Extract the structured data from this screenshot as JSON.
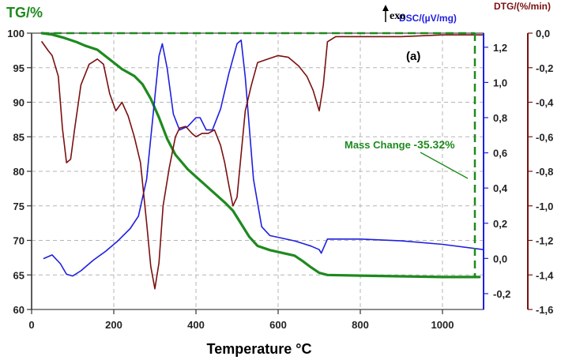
{
  "chart_data": {
    "type": "line",
    "title": "",
    "panel_label": "(a)",
    "exo_label": "exo",
    "xlabel": "Temperature °C",
    "xlim": [
      0,
      1100
    ],
    "xticks": [
      "0",
      "200",
      "400",
      "600",
      "800",
      "1000"
    ],
    "grid": true,
    "axes": {
      "tg": {
        "label": "TG/%",
        "ylim": [
          60,
          100
        ],
        "ticks": [
          "60",
          "65",
          "70",
          "75",
          "80",
          "85",
          "90",
          "95",
          "100"
        ],
        "color": "#1e8a1e"
      },
      "dsc": {
        "label": "DSC/(µV/mg)",
        "ylim": [
          -0.29,
          1.28
        ],
        "ticks": [
          "-0,2",
          "0,0",
          "0,2",
          "0,4",
          "0,6",
          "0,8",
          "1,0",
          "1,2"
        ],
        "color": "#1f1fe0"
      },
      "dtg": {
        "label": "DTG/(%/min)",
        "ylim": [
          -1.6,
          0.0
        ],
        "ticks": [
          "-1,6",
          "-1,4",
          "-1,2",
          "-1,0",
          "-0,8",
          "-0,6",
          "-0,4",
          "-0,2",
          "0,0"
        ],
        "color": "#7a1010"
      }
    },
    "series": [
      {
        "axis": "tg",
        "color": "#1e8a1e",
        "points": [
          [
            25,
            100
          ],
          [
            50,
            99.8
          ],
          [
            80,
            99.3
          ],
          [
            110,
            98.7
          ],
          [
            130,
            98.2
          ],
          [
            160,
            97.6
          ],
          [
            190,
            96.2
          ],
          [
            220,
            94.8
          ],
          [
            250,
            93.8
          ],
          [
            270,
            92.6
          ],
          [
            290,
            90.5
          ],
          [
            310,
            87.8
          ],
          [
            330,
            84.7
          ],
          [
            350,
            82.4
          ],
          [
            380,
            80.3
          ],
          [
            410,
            78.7
          ],
          [
            440,
            77.1
          ],
          [
            470,
            75.5
          ],
          [
            490,
            74.3
          ],
          [
            510,
            72.4
          ],
          [
            530,
            70.5
          ],
          [
            550,
            69.2
          ],
          [
            580,
            68.6
          ],
          [
            610,
            68.2
          ],
          [
            640,
            67.8
          ],
          [
            660,
            67.0
          ],
          [
            680,
            66.1
          ],
          [
            700,
            65.3
          ],
          [
            720,
            65.0
          ],
          [
            800,
            64.9
          ],
          [
            900,
            64.8
          ],
          [
            1000,
            64.7
          ],
          [
            1090,
            64.7
          ]
        ]
      },
      {
        "axis": "dsc",
        "color": "#1f1fe0",
        "points": [
          [
            30,
            0.0
          ],
          [
            50,
            0.02
          ],
          [
            70,
            -0.03
          ],
          [
            85,
            -0.09
          ],
          [
            100,
            -0.1
          ],
          [
            120,
            -0.07
          ],
          [
            150,
            -0.01
          ],
          [
            180,
            0.04
          ],
          [
            210,
            0.1
          ],
          [
            240,
            0.17
          ],
          [
            260,
            0.24
          ],
          [
            280,
            0.45
          ],
          [
            295,
            0.8
          ],
          [
            310,
            1.15
          ],
          [
            318,
            1.22
          ],
          [
            330,
            1.08
          ],
          [
            345,
            0.82
          ],
          [
            360,
            0.73
          ],
          [
            380,
            0.75
          ],
          [
            400,
            0.8
          ],
          [
            410,
            0.8
          ],
          [
            425,
            0.73
          ],
          [
            440,
            0.73
          ],
          [
            460,
            0.85
          ],
          [
            480,
            1.05
          ],
          [
            500,
            1.22
          ],
          [
            510,
            1.24
          ],
          [
            520,
            1.03
          ],
          [
            540,
            0.45
          ],
          [
            560,
            0.18
          ],
          [
            580,
            0.13
          ],
          [
            600,
            0.12
          ],
          [
            640,
            0.1
          ],
          [
            680,
            0.07
          ],
          [
            700,
            0.05
          ],
          [
            705,
            0.03
          ],
          [
            720,
            0.11
          ],
          [
            800,
            0.11
          ],
          [
            900,
            0.1
          ],
          [
            1000,
            0.08
          ],
          [
            1100,
            0.05
          ]
        ]
      },
      {
        "axis": "dtg",
        "color": "#7a1010",
        "points": [
          [
            25,
            -0.05
          ],
          [
            40,
            -0.1
          ],
          [
            50,
            -0.13
          ],
          [
            65,
            -0.25
          ],
          [
            75,
            -0.55
          ],
          [
            85,
            -0.75
          ],
          [
            95,
            -0.73
          ],
          [
            105,
            -0.55
          ],
          [
            120,
            -0.3
          ],
          [
            140,
            -0.18
          ],
          [
            160,
            -0.15
          ],
          [
            175,
            -0.18
          ],
          [
            190,
            -0.35
          ],
          [
            205,
            -0.45
          ],
          [
            220,
            -0.4
          ],
          [
            235,
            -0.48
          ],
          [
            250,
            -0.6
          ],
          [
            265,
            -0.75
          ],
          [
            280,
            -1.1
          ],
          [
            290,
            -1.35
          ],
          [
            300,
            -1.48
          ],
          [
            310,
            -1.33
          ],
          [
            320,
            -1.0
          ],
          [
            335,
            -0.78
          ],
          [
            350,
            -0.6
          ],
          [
            360,
            -0.55
          ],
          [
            375,
            -0.54
          ],
          [
            390,
            -0.58
          ],
          [
            400,
            -0.6
          ],
          [
            415,
            -0.58
          ],
          [
            430,
            -0.58
          ],
          [
            445,
            -0.56
          ],
          [
            460,
            -0.65
          ],
          [
            470,
            -0.75
          ],
          [
            480,
            -0.88
          ],
          [
            490,
            -1.0
          ],
          [
            500,
            -0.95
          ],
          [
            510,
            -0.7
          ],
          [
            520,
            -0.45
          ],
          [
            535,
            -0.3
          ],
          [
            550,
            -0.17
          ],
          [
            575,
            -0.15
          ],
          [
            600,
            -0.13
          ],
          [
            625,
            -0.14
          ],
          [
            650,
            -0.19
          ],
          [
            670,
            -0.25
          ],
          [
            685,
            -0.33
          ],
          [
            700,
            -0.45
          ],
          [
            710,
            -0.3
          ],
          [
            720,
            -0.05
          ],
          [
            740,
            -0.02
          ],
          [
            800,
            -0.02
          ],
          [
            900,
            -0.02
          ],
          [
            1000,
            -0.01
          ],
          [
            1100,
            -0.01
          ]
        ]
      }
    ],
    "annotations": [
      {
        "text_prefix": "Mass Change ",
        "value": "-35.32%",
        "color": "#1e8a1e"
      }
    ]
  }
}
